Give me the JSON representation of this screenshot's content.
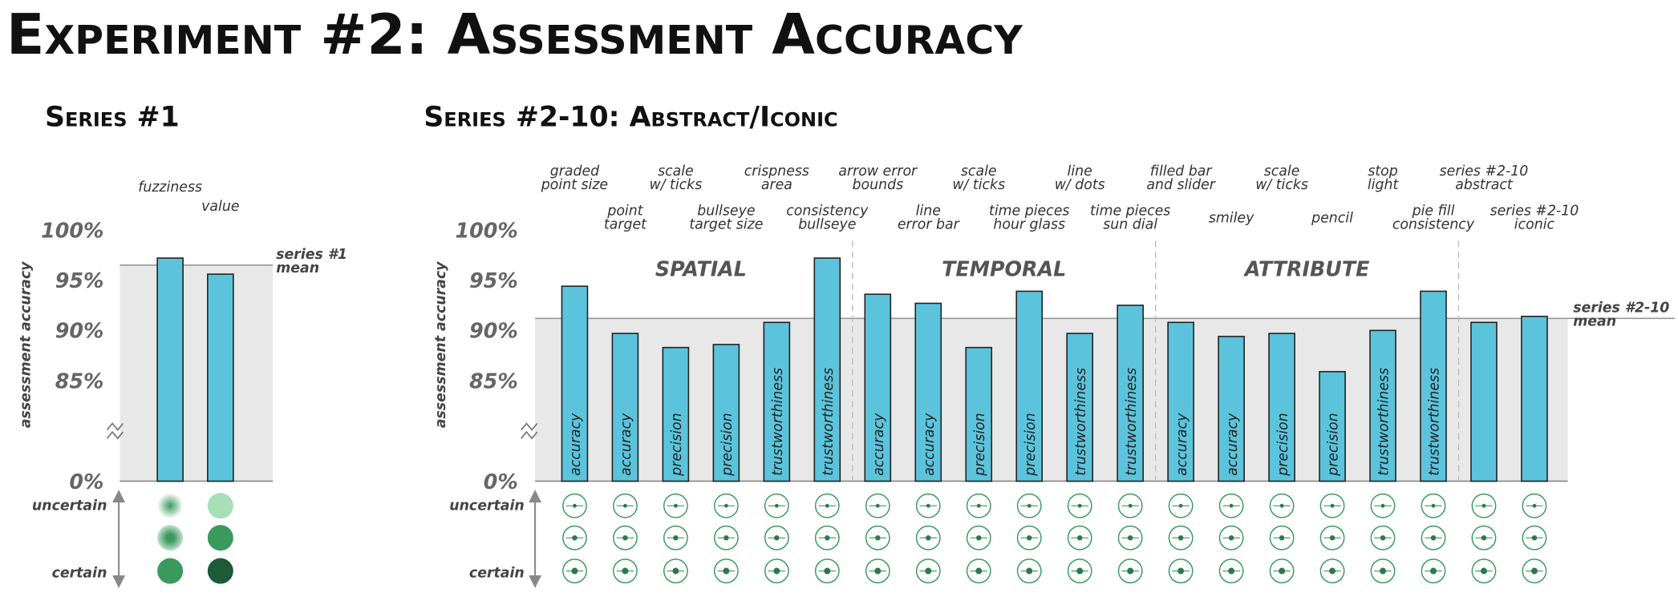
{
  "title": "Experiment #2:  Assessment Accuracy",
  "chart_data": [
    {
      "type": "bar",
      "title": "Series #1",
      "ylabel": "assessment accuracy",
      "categories": [
        "fuzziness",
        "value"
      ],
      "values": [
        97.2,
        95.6
      ],
      "color": "#5bc4dc",
      "ylim": [
        0,
        100
      ],
      "y_break": [
        0,
        80
      ],
      "yticks": [
        {
          "value": 0,
          "label": "0%"
        },
        {
          "value": 85,
          "label": "85%"
        },
        {
          "value": 90,
          "label": "90%"
        },
        {
          "value": 95,
          "label": "95%"
        },
        {
          "value": 100,
          "label": "100%"
        }
      ],
      "mean": 96.5,
      "mean_label": "series #1\nmean",
      "scale_labels": [
        "uncertain",
        "certain"
      ]
    },
    {
      "type": "bar",
      "title": "Series #2-10: Abstract/Iconic",
      "ylabel": "assessment accuracy",
      "categories": [
        "graded\npoint size",
        "point\ntarget",
        "scale\nw/ ticks",
        "bullseye\ntarget size",
        "crispness\narea",
        "consistency\nbullseye",
        "arrow error\nbounds",
        "line\nerror bar",
        "scale\nw/ ticks",
        "time pieces\nhour glass",
        "line\nw/ dots",
        "time pieces\nsun dial",
        "filled bar\nand slider",
        "smiley",
        "scale\nw/ ticks",
        "pencil",
        "stop\nlight",
        "pie fill\nconsistency",
        "series #2-10\nabstract",
        "series #2-10\niconic"
      ],
      "values": [
        94.4,
        89.7,
        88.3,
        88.6,
        90.8,
        97.2,
        93.6,
        92.7,
        88.3,
        93.9,
        89.7,
        92.5,
        90.8,
        89.4,
        89.7,
        85.9,
        90.0,
        93.9,
        90.8,
        91.4
      ],
      "bar_labels": [
        "accuracy",
        "accuracy",
        "precision",
        "precision",
        "trustworthiness",
        "trustworthiness",
        "accuracy",
        "accuracy",
        "precision",
        "precision",
        "trustworthiness",
        "trustworthiness",
        "accuracy",
        "accuracy",
        "precision",
        "precision",
        "trustworthiness",
        "trustworthiness",
        null,
        null
      ],
      "groups": [
        {
          "label": "SPATIAL",
          "size": 6
        },
        {
          "label": "TEMPORAL",
          "size": 6
        },
        {
          "label": "ATTRIBUTE",
          "size": 6
        }
      ],
      "color": "#5bc4dc",
      "ylim": [
        0,
        100
      ],
      "y_break": [
        0,
        80
      ],
      "yticks": [
        {
          "value": 0,
          "label": "0%"
        },
        {
          "value": 85,
          "label": "85%"
        },
        {
          "value": 90,
          "label": "90%"
        },
        {
          "value": 95,
          "label": "95%"
        },
        {
          "value": 100,
          "label": "100%"
        }
      ],
      "mean": 91.2,
      "mean_label": "series #2-10\nmean",
      "scale_labels": [
        "uncertain",
        "certain"
      ]
    }
  ]
}
